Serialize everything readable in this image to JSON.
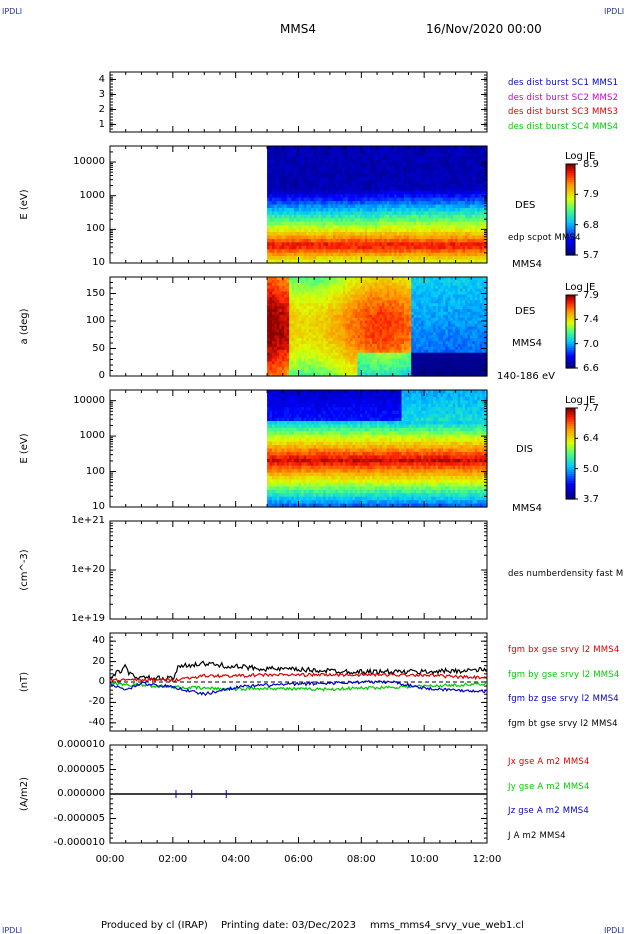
{
  "corners": {
    "top_left": "IPDLI",
    "top_right": "IPDLI",
    "bottom_left": "IPDLI",
    "bottom_right": "IPDLI"
  },
  "header": {
    "spacecraft": "MMS4",
    "datetime": "16/Nov/2020 00:00"
  },
  "footer": {
    "produced_by": "Produced by cl (IRAP)",
    "printing_date": "Printing date: 03/Dec/2023",
    "script": "mms_mms4_srvy_vue_web1.cl"
  },
  "time_axis": {
    "ticks": [
      "00:00",
      "02:00",
      "04:00",
      "06:00",
      "08:00",
      "10:00",
      "12:00"
    ],
    "values_h": [
      0,
      2,
      4,
      6,
      8,
      10,
      12
    ],
    "range_h": [
      0,
      12
    ]
  },
  "colors": {
    "blue": "#0000cc",
    "magenta": "#cc00cc",
    "red": "#dd0000",
    "green": "#00cc00",
    "black": "#000000"
  },
  "chart_data": [
    {
      "type": "line",
      "ylim": [
        0.5,
        4.5
      ],
      "yticks": [
        "1",
        "2",
        "3",
        "4"
      ],
      "ytick_values": [
        1,
        2,
        3,
        4
      ],
      "ylabel": "",
      "legend": [
        {
          "label": "des dist burst SC1 MMS1",
          "color": "#0000cc"
        },
        {
          "label": "des dist burst SC2 MMS2",
          "color": "#cc00cc"
        },
        {
          "label": "des dist burst SC3 MMS3",
          "color": "#dd0000"
        },
        {
          "label": "des dist burst SC4 MMS4",
          "color": "#00cc00"
        }
      ],
      "series": []
    },
    {
      "type": "heatmap",
      "ylabel": "E (eV)",
      "yscale": "log",
      "ylim": [
        10,
        30000
      ],
      "yticks": [
        "10",
        "100",
        "1000",
        "10000"
      ],
      "ytick_values": [
        10,
        100,
        1000,
        10000
      ],
      "data_start_h": 5.0,
      "right_labels": [
        "DES",
        "edp scpot MMS4",
        "MMS4"
      ],
      "colorbar": {
        "title": "Log JE",
        "ticks": [
          "8.9",
          "7.9",
          "6.8",
          "5.7"
        ],
        "range": [
          5.7,
          8.9
        ]
      }
    },
    {
      "type": "heatmap",
      "ylabel": "a (deg)",
      "ylim": [
        0,
        180
      ],
      "yticks": [
        "0",
        "50",
        "100",
        "150"
      ],
      "ytick_values": [
        0,
        50,
        100,
        150
      ],
      "data_start_h": 5.0,
      "right_labels": [
        "DES",
        "MMS4",
        "140-186 eV"
      ],
      "colorbar": {
        "title": "Log JE",
        "ticks": [
          "7.9",
          "7.4",
          "7.0",
          "6.6"
        ],
        "range": [
          6.6,
          7.9
        ]
      }
    },
    {
      "type": "heatmap",
      "ylabel": "E (eV)",
      "yscale": "log",
      "ylim": [
        10,
        20000
      ],
      "yticks": [
        "10",
        "100",
        "1000",
        "10000"
      ],
      "ytick_values": [
        10,
        100,
        1000,
        10000
      ],
      "data_start_h": 5.0,
      "right_labels": [
        "DIS",
        "MMS4"
      ],
      "colorbar": {
        "title": "Log JE",
        "ticks": [
          "7.7",
          "6.4",
          "5.0",
          "3.7"
        ],
        "range": [
          3.7,
          7.7
        ]
      }
    },
    {
      "type": "line",
      "ylabel": "(cm^-3)",
      "yscale": "log",
      "ylim": [
        1e+19,
        1e+21
      ],
      "yticks": [
        "1e+21",
        "1e+20",
        "1e+19"
      ],
      "ytick_values": [
        1e+21,
        1e+20,
        1e+19
      ],
      "legend": [
        {
          "label": "des numberdensity fast M",
          "color": "#000000"
        }
      ],
      "series": []
    },
    {
      "type": "line",
      "ylabel": "(nT)",
      "ylim": [
        -48,
        48
      ],
      "yticks": [
        "40",
        "20",
        "0",
        "-20",
        "-40"
      ],
      "ytick_values": [
        40,
        20,
        0,
        -20,
        -40
      ],
      "legend": [
        {
          "label": "fgm bx gse srvy l2 MMS4",
          "color": "#dd0000"
        },
        {
          "label": "fgm by gse srvy l2 MMS4",
          "color": "#00cc00"
        },
        {
          "label": "fgm bz gse srvy l2 MMS4",
          "color": "#0000cc"
        },
        {
          "label": "fgm bt gse srvy l2 MMS4",
          "color": "#000000"
        }
      ],
      "series": [
        {
          "key": "bt",
          "color": "#000000",
          "x": [
            0,
            0.5,
            0.6,
            1,
            2,
            2.2,
            3,
            4,
            5,
            6,
            7,
            8,
            9,
            10,
            11,
            12
          ],
          "y": [
            4,
            15,
            8,
            4,
            3,
            16,
            18,
            15,
            13,
            12,
            11,
            10,
            10,
            10,
            11,
            12
          ]
        },
        {
          "key": "bx",
          "color": "#dd0000",
          "x": [
            0,
            1,
            2,
            3,
            4,
            5,
            6,
            7,
            8,
            9,
            10,
            11,
            12
          ],
          "y": [
            2,
            2,
            2,
            6,
            6,
            7,
            7,
            7,
            7,
            7,
            7,
            5,
            4
          ]
        },
        {
          "key": "by",
          "color": "#00cc00",
          "x": [
            0,
            1,
            2,
            3,
            4,
            5,
            6,
            7,
            8,
            9,
            10,
            11,
            12
          ],
          "y": [
            -2,
            -3,
            -5,
            -6,
            -7,
            -6,
            -7,
            -7,
            -6,
            -5,
            -4,
            -3,
            -2
          ]
        },
        {
          "key": "bz",
          "color": "#0000cc",
          "x": [
            0,
            0.5,
            1,
            2,
            3,
            4,
            5,
            6,
            7,
            8,
            9,
            10,
            11,
            12
          ],
          "y": [
            -1,
            -8,
            -1,
            -5,
            -12,
            -5,
            -3,
            -2,
            -1,
            0,
            0,
            -6,
            -8,
            -9
          ]
        }
      ]
    },
    {
      "type": "line",
      "ylabel": "(A/m2)",
      "ylim": [
        -1e-05,
        1e-05
      ],
      "yticks": [
        "0.000010",
        "0.000005",
        "0.000000",
        "-0.000005",
        "-0.000010"
      ],
      "ytick_values": [
        1e-05,
        5e-06,
        0,
        -5e-06,
        -1e-05
      ],
      "legend": [
        {
          "label": "Jx gse A m2 MMS4",
          "color": "#dd0000"
        },
        {
          "label": "Jy gse A m2 MMS4",
          "color": "#00cc00"
        },
        {
          "label": "Jz gse A m2 MMS4",
          "color": "#0000cc"
        },
        {
          "label": "J A m2 MMS4",
          "color": "#000000"
        }
      ],
      "series": [
        {
          "key": "j",
          "color": "#000000",
          "x": [
            0,
            2,
            4,
            6,
            8,
            10,
            12
          ],
          "y": [
            0,
            0,
            0,
            0,
            0,
            0,
            0
          ]
        }
      ]
    }
  ]
}
